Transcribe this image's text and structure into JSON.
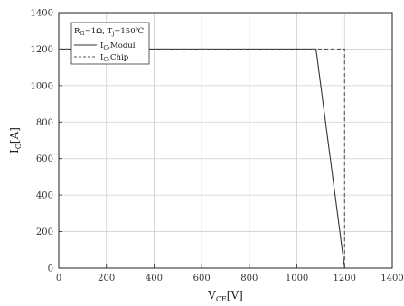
{
  "chart_data": {
    "type": "line",
    "xlabel_main": "V",
    "xlabel_sub": "CE",
    "xlabel_unit": "[V]",
    "ylabel_main": "I",
    "ylabel_sub": "C",
    "ylabel_unit": "[A]",
    "xlim": [
      0,
      1400
    ],
    "ylim": [
      0,
      1400
    ],
    "xticks": [
      0,
      200,
      400,
      600,
      800,
      1000,
      1200,
      1400
    ],
    "yticks": [
      0,
      200,
      400,
      600,
      800,
      1000,
      1200,
      1400
    ],
    "grid": true,
    "legend_position": "top-left",
    "legend": {
      "header": {
        "r_main": "R",
        "r_sub": "G",
        "r_rest": "=1Ω, T",
        "t_sub": "j",
        "t_rest": "=150℃"
      }
    },
    "series": [
      {
        "label_main": "I",
        "label_sub": "C",
        "label_rest": ",Modul",
        "style": "solid",
        "color": "#333333",
        "points": [
          [
            0,
            1200
          ],
          [
            1080,
            1200
          ],
          [
            1200,
            0
          ]
        ]
      },
      {
        "label_main": "I",
        "label_sub": "C",
        "label_rest": ",Chip",
        "style": "dashed",
        "color": "#555555",
        "points": [
          [
            0,
            1200
          ],
          [
            1200,
            1200
          ],
          [
            1200,
            0
          ]
        ]
      }
    ]
  }
}
